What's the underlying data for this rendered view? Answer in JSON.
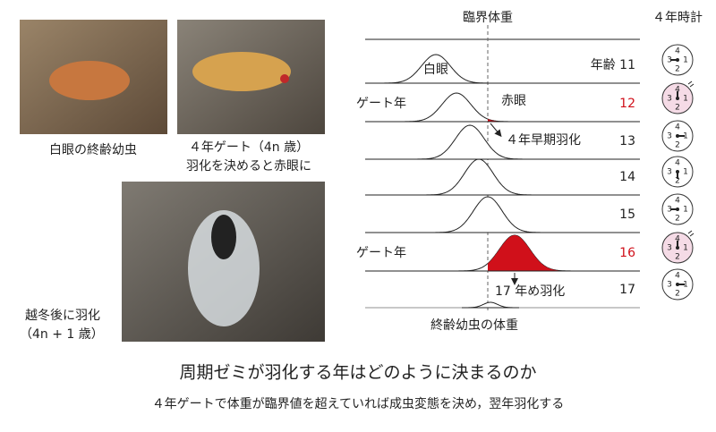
{
  "photos": [
    {
      "caption": [
        "白眼の終齢幼虫"
      ]
    },
    {
      "caption": [
        "４年ゲート（4n 歳）",
        "羽化を決めると赤眼に"
      ]
    },
    {
      "caption": [
        "越冬後に羽化",
        "（4n + 1 歳）"
      ]
    }
  ],
  "diagram": {
    "title": "臨界体重",
    "x_label": "終齢幼虫の体重",
    "clock_title": "４年時計",
    "clock_numbers": [
      "4",
      "1",
      "2",
      "3"
    ],
    "rows": [
      {
        "age": "年齢 11",
        "curve_label": "白眼"
      },
      {
        "age": "12",
        "gate_label": "ゲート年",
        "curve_label": "赤眼"
      },
      {
        "age": "13",
        "annotation": "４年早期羽化"
      },
      {
        "age": "14"
      },
      {
        "age": "15"
      },
      {
        "age": "16",
        "gate_label": "ゲート年"
      },
      {
        "age": "17",
        "annotation": "17 年め羽化"
      }
    ]
  },
  "footer": {
    "title": "周期ゼミが羽化する年はどのように決まるのか",
    "subtitle": "４年ゲートで体重が臨界値を超えていれば成虫変態を決め，翌年羽化する"
  }
}
